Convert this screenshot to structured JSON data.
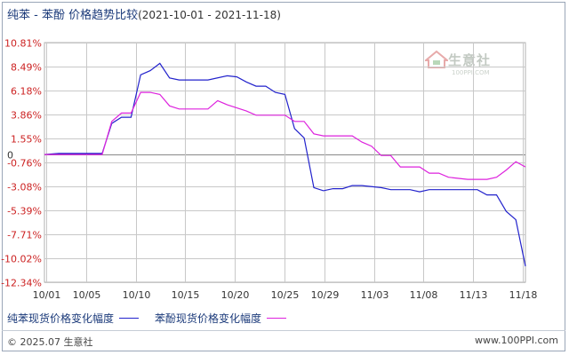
{
  "title": {
    "main": "纯苯 - 苯酚 价格趋势比较",
    "range": "(2021-10-01 - 2021-11-18)"
  },
  "watermark": {
    "text": "生意社",
    "sub": "100PPI.COM"
  },
  "footer": {
    "left": "© 2025.07 生意社",
    "right": "www.100PPI.com"
  },
  "colors": {
    "series1": "#2222cc",
    "series2": "#dd22dd",
    "axis_labels": "#cc2222",
    "grid": "#c8c8c8"
  },
  "chart_data": {
    "type": "line",
    "y_ticks": [
      "10.81%",
      "8.49%",
      "6.18%",
      "3.86%",
      "1.55%",
      "-0.76%",
      "-3.08%",
      "-5.39%",
      "-7.71%",
      "-10.02%",
      "-12.34%"
    ],
    "y_tick_values": [
      10.81,
      8.49,
      6.18,
      3.86,
      1.55,
      -0.76,
      -3.08,
      -5.39,
      -7.71,
      -10.02,
      -12.34
    ],
    "zero_label": "0",
    "ylim": [
      -12.34,
      10.81
    ],
    "x_ticks": [
      "10/01",
      "10/05",
      "10/10",
      "10/15",
      "10/20",
      "10/25",
      "10/29",
      "11/03",
      "11/08",
      "11/13",
      "11/18"
    ],
    "x_tick_days": [
      0,
      4,
      9,
      14,
      19,
      24,
      28,
      33,
      38,
      43,
      48
    ],
    "xlim": [
      0,
      48
    ],
    "series": [
      {
        "name": "纯苯现货价格变化幅度",
        "points": [
          [
            0,
            0
          ],
          [
            1.5,
            0.1
          ],
          [
            6,
            0.1
          ],
          [
            7,
            3.0
          ],
          [
            8,
            3.6
          ],
          [
            9,
            3.6
          ],
          [
            10,
            7.7
          ],
          [
            11,
            8.1
          ],
          [
            12,
            8.8
          ],
          [
            13,
            7.4
          ],
          [
            14,
            7.2
          ],
          [
            17,
            7.2
          ],
          [
            19,
            7.6
          ],
          [
            20,
            7.5
          ],
          [
            21,
            7.0
          ],
          [
            22,
            6.6
          ],
          [
            23,
            6.6
          ],
          [
            24,
            6.0
          ],
          [
            25,
            5.8
          ],
          [
            26,
            2.5
          ],
          [
            27,
            1.6
          ],
          [
            28,
            -3.2
          ],
          [
            29,
            -3.5
          ],
          [
            30,
            -3.3
          ],
          [
            31,
            -3.3
          ],
          [
            32,
            -3.0
          ],
          [
            33,
            -3.0
          ],
          [
            35,
            -3.2
          ],
          [
            36,
            -3.4
          ],
          [
            38,
            -3.4
          ],
          [
            39,
            -3.6
          ],
          [
            40,
            -3.4
          ],
          [
            45,
            -3.4
          ],
          [
            46,
            -3.9
          ],
          [
            47,
            -3.9
          ],
          [
            48,
            -5.5
          ],
          [
            49,
            -6.3
          ],
          [
            50,
            -10.8
          ]
        ]
      },
      {
        "name": "苯酚现货价格变化幅度",
        "points": [
          [
            0,
            0
          ],
          [
            6,
            0
          ],
          [
            7,
            3.2
          ],
          [
            8,
            4.0
          ],
          [
            9,
            4.0
          ],
          [
            10,
            6.0
          ],
          [
            11,
            6.0
          ],
          [
            12,
            5.8
          ],
          [
            13,
            4.7
          ],
          [
            14,
            4.4
          ],
          [
            17,
            4.4
          ],
          [
            18,
            5.2
          ],
          [
            19,
            4.8
          ],
          [
            21,
            4.2
          ],
          [
            22,
            3.8
          ],
          [
            25,
            3.8
          ],
          [
            26,
            3.2
          ],
          [
            27,
            3.2
          ],
          [
            28,
            2.0
          ],
          [
            29,
            1.8
          ],
          [
            32,
            1.8
          ],
          [
            33,
            1.2
          ],
          [
            34,
            0.8
          ],
          [
            35,
            -0.1
          ],
          [
            36,
            -0.1
          ],
          [
            37,
            -1.2
          ],
          [
            39,
            -1.2
          ],
          [
            40,
            -1.8
          ],
          [
            41,
            -1.8
          ],
          [
            42,
            -2.2
          ],
          [
            44,
            -2.4
          ],
          [
            46,
            -2.4
          ],
          [
            47,
            -2.2
          ],
          [
            48,
            -1.5
          ],
          [
            49,
            -0.7
          ],
          [
            50,
            -1.2
          ]
        ]
      }
    ]
  }
}
